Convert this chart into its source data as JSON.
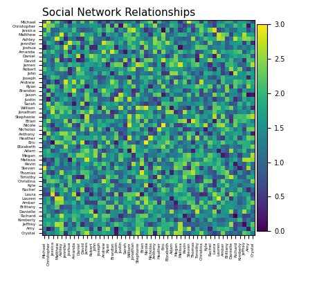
{
  "title": "Social Network Relationships",
  "names": [
    "Michael",
    "Christopher",
    "Jessica",
    "Matthew",
    "Ashley",
    "Jennifer",
    "Joshua",
    "Amanda",
    "Daniel",
    "David",
    "James",
    "Robert",
    "John",
    "Joseph",
    "Andrew",
    "Ryan",
    "Brandon",
    "Jason",
    "Justin",
    "Sarah",
    "William",
    "Jonathan",
    "Stephanie",
    "Brian",
    "Nicole",
    "Nicholas",
    "Anthony",
    "Heather",
    "Eric",
    "Elizabeth",
    "Adam",
    "Megan",
    "Melissa",
    "Kevin",
    "Steven",
    "Thomas",
    "Timothy",
    "Christina",
    "Kyle",
    "Rachel",
    "Laura",
    "Lauren",
    "Amber",
    "Brittany",
    "Danielle",
    "Richard",
    "Kimberly",
    "Jeffrey",
    "Amy",
    "Crystal"
  ],
  "cmap": "viridis",
  "vmin": 0.0,
  "vmax": 3.0,
  "seed": 42,
  "title_fontsize": 11,
  "tick_fontsize": 4.2,
  "cbar_fontsize": 7
}
